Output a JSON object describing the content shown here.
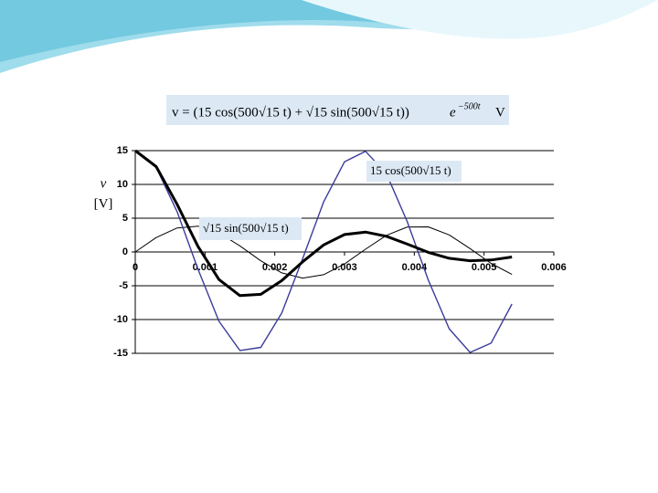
{
  "chart_data": {
    "type": "line",
    "title": "v = (15 cos(500√15 t) + √15 sin(500√15 t))",
    "title_factor": "e",
    "title_exponent": "−500t",
    "title_unit": "V",
    "y_label": [
      "v",
      "[V]"
    ],
    "annotations": [
      "15 cos(500√15 t)",
      "√15 sin(500√15 t)"
    ],
    "x": [
      0,
      0.0003,
      0.0006,
      0.0009,
      0.0012,
      0.0015,
      0.0018,
      0.0021,
      0.0024,
      0.0027,
      0.003,
      0.0033,
      0.0036,
      0.0039,
      0.0042,
      0.0045,
      0.0048,
      0.0051,
      0.0054
    ],
    "series": [
      {
        "color": "#000000",
        "width": 3,
        "values": [
          15,
          12.63,
          7.05,
          0.8,
          -4.08,
          -6.46,
          -6.27,
          -4.24,
          -1.45,
          1.04,
          2.58,
          2.94,
          2.32,
          1.16,
          -0.05,
          -0.93,
          -1.3,
          -1.19,
          -0.74
        ]
      },
      {
        "color": "#3b3b9c",
        "width": 1.4,
        "values": [
          15,
          12.54,
          5.96,
          -2.57,
          -10.26,
          -14.58,
          -14.12,
          -9.04,
          -0.97,
          7.4,
          13.35,
          14.91,
          11.59,
          4.46,
          -4.14,
          -11.37,
          -14.87,
          -13.5,
          -7.7
        ]
      },
      {
        "color": "#000000",
        "width": 1,
        "values": [
          0,
          2.13,
          3.55,
          3.82,
          2.83,
          0.91,
          -1.31,
          -3.09,
          -3.86,
          -3.37,
          -1.77,
          0.41,
          2.46,
          3.7,
          3.72,
          2.53,
          0.5,
          -1.69,
          -3.33
        ]
      }
    ],
    "xlim": [
      0,
      0.006
    ],
    "xticks": [
      0,
      0.001,
      0.002,
      0.003,
      0.004,
      0.005,
      0.006
    ],
    "ylim": [
      -15,
      15
    ],
    "yticks": [
      15,
      10,
      5,
      0,
      -5,
      -10,
      -15
    ],
    "grid": true
  }
}
